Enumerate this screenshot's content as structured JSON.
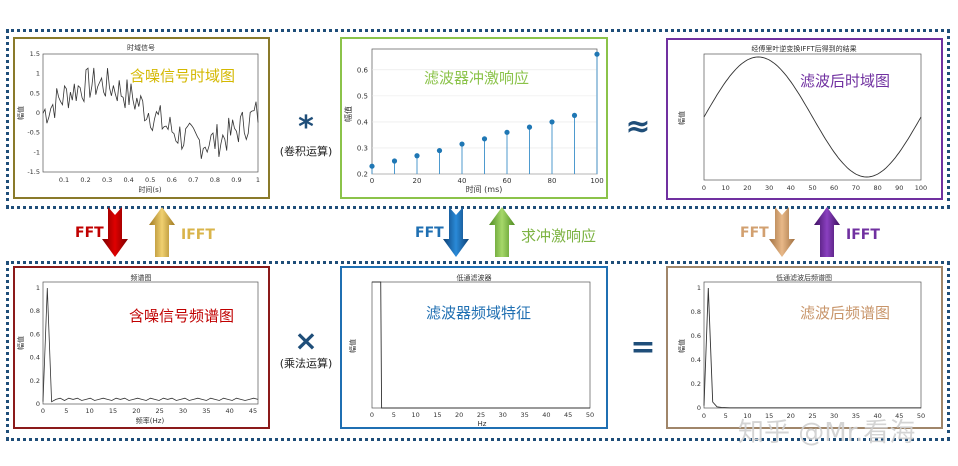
{
  "panels": {
    "p1": {
      "overlay": "含噪信号时域图",
      "overlay_color": "#d4b800",
      "border": "#8a7a2a",
      "inner_title": "时域信号",
      "ylabel": "幅值",
      "xlabel": "时间(s)",
      "xticks": [
        "0.1",
        "0.2",
        "0.3",
        "0.4",
        "0.5",
        "0.6",
        "0.7",
        "0.8",
        "0.9",
        "1"
      ],
      "yticks": [
        "1.5",
        "1",
        "0.5",
        "0",
        "-0.5",
        "-1",
        "-1.5"
      ]
    },
    "p2": {
      "overlay": "滤波器冲激响应",
      "overlay_color": "#8bc34a",
      "border": "#8bc34a",
      "inner_title": "",
      "ylabel": "幅值",
      "xlabel": "时间 (ms)",
      "xticks": [
        "0",
        "20",
        "40",
        "60",
        "80",
        "100"
      ],
      "yticks": [
        "0.6",
        "0.5",
        "0.4",
        "0.3",
        "0.2"
      ]
    },
    "p3": {
      "overlay": "滤波后时域图",
      "overlay_color": "#7030a0",
      "border": "#7030a0",
      "inner_title": "经傅里叶逆变换IFFT后得到的结果",
      "ylabel": "幅值",
      "xlabel": "",
      "xticks": [
        "0",
        "10",
        "20",
        "30",
        "40",
        "50",
        "60",
        "70",
        "80",
        "90",
        "100"
      ],
      "yticks": []
    },
    "p4": {
      "overlay": "含噪信号频谱图",
      "overlay_color": "#c00000",
      "border": "#8b1a1a",
      "inner_title": "频谱图",
      "ylabel": "幅值",
      "xlabel": "频率(Hz)",
      "xticks": [
        "0",
        "5",
        "10",
        "15",
        "20",
        "25",
        "30",
        "35",
        "40",
        "45"
      ],
      "yticks": [
        "1",
        "0.8",
        "0.6",
        "0.4",
        "0.2",
        "0"
      ]
    },
    "p5": {
      "overlay": "滤波器频域特征",
      "overlay_color": "#1f6fb2",
      "border": "#1f6fb2",
      "inner_title": "低通滤波器",
      "ylabel": "幅值",
      "xlabel": "Hz",
      "xticks": [
        "0",
        "5",
        "10",
        "15",
        "20",
        "25",
        "30",
        "35",
        "40",
        "45",
        "50"
      ],
      "yticks": []
    },
    "p6": {
      "overlay": "滤波后频谱图",
      "overlay_color": "#c8956a",
      "border": "#a0866a",
      "inner_title": "低通滤波后频谱图",
      "ylabel": "幅值",
      "xlabel": "",
      "xticks": [
        "0",
        "5",
        "10",
        "15",
        "20",
        "25",
        "30",
        "35",
        "40",
        "45",
        "50"
      ],
      "yticks": [
        "1",
        "0.8",
        "0.6",
        "0.4",
        "0.2",
        "0"
      ]
    }
  },
  "operators": {
    "conv": {
      "symbol": "*",
      "note": "(卷积运算)"
    },
    "approx": {
      "symbol": "≈"
    },
    "mult": {
      "symbol": "×",
      "note": "(乘法运算)"
    },
    "equals": {
      "symbol": "="
    }
  },
  "arrows": {
    "left_down": {
      "label": "FFT",
      "color": "#c00000"
    },
    "left_up": {
      "label": "IFFT",
      "color": "#d9b44a"
    },
    "mid_down": {
      "label": "FFT",
      "color": "#1f6fb2"
    },
    "mid_up": {
      "label": "求冲激响应",
      "color": "#7cb342"
    },
    "right_down": {
      "label": "FFT",
      "color": "#d2a070"
    },
    "right_up": {
      "label": "IFFT",
      "color": "#7030a0"
    }
  },
  "stem_data": {
    "x": [
      0,
      10,
      20,
      30,
      40,
      50,
      60,
      70,
      80,
      90,
      100
    ],
    "y": [
      0.23,
      0.25,
      0.27,
      0.29,
      0.315,
      0.335,
      0.36,
      0.38,
      0.4,
      0.425,
      0.66
    ]
  },
  "watermark": "知乎 @Mr.看海"
}
